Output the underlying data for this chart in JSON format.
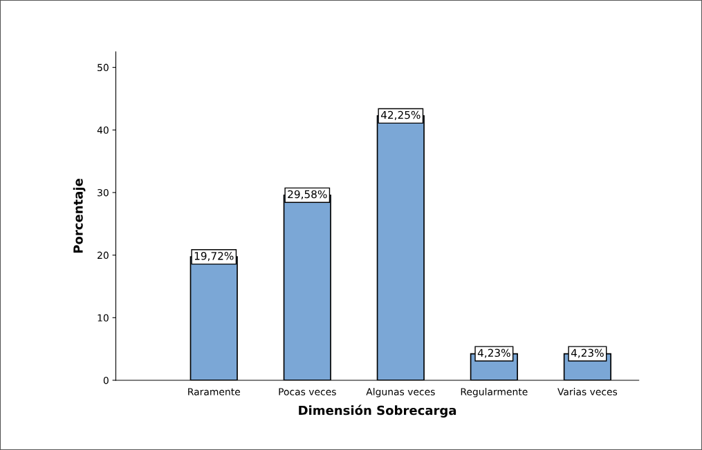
{
  "chart_data": {
    "type": "bar",
    "xlabel": "Dimensión Sobrecarga",
    "ylabel": "Porcentaje",
    "categories": [
      "Raramente",
      "Pocas veces",
      "Algunas veces",
      "Regularmente",
      "Varias veces"
    ],
    "values": [
      19.72,
      29.58,
      42.25,
      4.23,
      4.23
    ],
    "value_labels": [
      "19,72%",
      "29,58%",
      "42,25%",
      "4,23%",
      "4,23%"
    ],
    "color": "#7ba7d6",
    "ylim": [
      0,
      52.5
    ],
    "yticks": [
      0,
      10,
      20,
      30,
      40,
      50
    ],
    "grid": false,
    "legend": false
  }
}
